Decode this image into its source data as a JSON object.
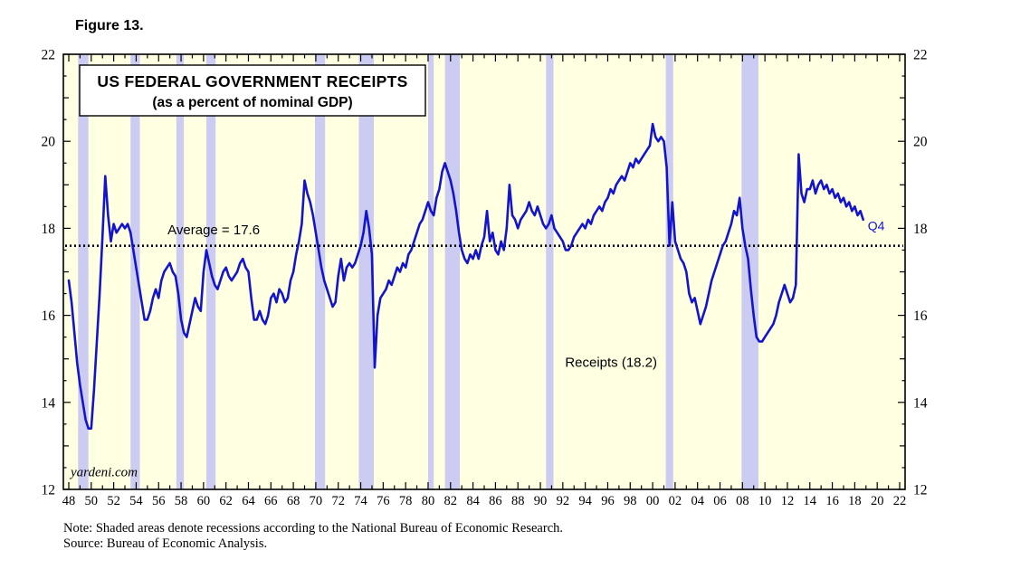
{
  "figure_label": "Figure 13.",
  "watermark": "yardeni.com",
  "title_box": {
    "line1": "US FEDERAL GOVERNMENT RECEIPTS",
    "line2": "(as a percent of nominal GDP)"
  },
  "annotations": {
    "average_label": "Average = 17.6",
    "series_label": "Receipts (18.2)",
    "last_point_label": "Q4"
  },
  "notes": {
    "note_line": "Note: Shaded areas denote recessions according to the National Bureau of Economic Research.",
    "source_line": "Source: Bureau of Economic Analysis."
  },
  "colors": {
    "plot_bg": "#ffffe1",
    "recession_band": "#ccccf2",
    "line": "#1414cc",
    "average_line": "#000000",
    "border": "#000000"
  },
  "chart_data": {
    "type": "line",
    "title": "US FEDERAL GOVERNMENT RECEIPTS",
    "subtitle": "(as a percent of nominal GDP)",
    "xlabel": "",
    "ylabel": "",
    "grid": false,
    "legend_position": "none",
    "x_range": [
      1948,
      2022
    ],
    "y_range": [
      12,
      22
    ],
    "y_ticks": [
      12,
      14,
      16,
      18,
      20,
      22
    ],
    "x_tick_years": [
      1948,
      1950,
      1952,
      1954,
      1956,
      1958,
      1960,
      1962,
      1964,
      1966,
      1968,
      1970,
      1972,
      1974,
      1976,
      1978,
      1980,
      1982,
      1984,
      1986,
      1988,
      1990,
      1992,
      1994,
      1996,
      1998,
      2000,
      2002,
      2004,
      2006,
      2008,
      2010,
      2012,
      2014,
      2016,
      2018,
      2020,
      2022
    ],
    "x_tick_labels": [
      "48",
      "50",
      "52",
      "54",
      "56",
      "58",
      "60",
      "62",
      "64",
      "66",
      "68",
      "70",
      "72",
      "74",
      "76",
      "78",
      "80",
      "82",
      "84",
      "86",
      "88",
      "90",
      "92",
      "94",
      "96",
      "98",
      "00",
      "02",
      "04",
      "06",
      "08",
      "10",
      "12",
      "14",
      "16",
      "18",
      "20",
      "22"
    ],
    "average_value": 17.6,
    "last_value": 18.2,
    "last_quarter": "Q4",
    "recessions": [
      [
        1948.83,
        1949.75
      ],
      [
        1953.5,
        1954.33
      ],
      [
        1957.58,
        1958.25
      ],
      [
        1960.25,
        1961.08
      ],
      [
        1969.92,
        1970.83
      ],
      [
        1973.83,
        1975.17
      ],
      [
        1980.0,
        1980.5
      ],
      [
        1981.5,
        1982.83
      ],
      [
        1990.5,
        1991.17
      ],
      [
        2001.17,
        2001.83
      ],
      [
        2007.92,
        2009.42
      ]
    ],
    "series": [
      {
        "name": "US federal government receipts (percent of nominal GDP), quarterly",
        "x_start": 1948,
        "x_step": 0.25,
        "values": [
          16.8,
          16.3,
          15.6,
          14.9,
          14.4,
          14.0,
          13.6,
          13.4,
          13.4,
          14.3,
          15.4,
          16.5,
          17.8,
          19.2,
          18.3,
          17.7,
          18.1,
          17.9,
          18.0,
          18.1,
          18.0,
          18.1,
          17.9,
          17.5,
          17.1,
          16.7,
          16.3,
          15.9,
          15.9,
          16.1,
          16.4,
          16.6,
          16.4,
          16.8,
          17.0,
          17.1,
          17.2,
          17.0,
          16.9,
          16.5,
          15.9,
          15.6,
          15.5,
          15.8,
          16.1,
          16.4,
          16.2,
          16.1,
          17.0,
          17.5,
          17.2,
          16.9,
          16.7,
          16.6,
          16.8,
          17.0,
          17.1,
          16.9,
          16.8,
          16.9,
          17.0,
          17.2,
          17.3,
          17.1,
          17.0,
          16.4,
          15.9,
          15.9,
          16.1,
          15.9,
          15.8,
          16.0,
          16.4,
          16.5,
          16.3,
          16.6,
          16.5,
          16.3,
          16.4,
          16.8,
          17.0,
          17.4,
          17.7,
          18.1,
          19.1,
          18.8,
          18.6,
          18.3,
          17.9,
          17.5,
          17.1,
          16.8,
          16.6,
          16.4,
          16.2,
          16.3,
          16.9,
          17.3,
          16.8,
          17.1,
          17.2,
          17.1,
          17.2,
          17.4,
          17.6,
          17.9,
          18.4,
          18.0,
          17.4,
          14.8,
          16.0,
          16.4,
          16.5,
          16.6,
          16.8,
          16.7,
          16.9,
          17.1,
          17.0,
          17.2,
          17.1,
          17.4,
          17.5,
          17.7,
          17.9,
          18.1,
          18.2,
          18.4,
          18.6,
          18.4,
          18.3,
          18.7,
          18.9,
          19.3,
          19.5,
          19.3,
          19.1,
          18.8,
          18.4,
          17.9,
          17.5,
          17.3,
          17.2,
          17.4,
          17.3,
          17.5,
          17.3,
          17.6,
          17.8,
          18.4,
          17.7,
          17.9,
          17.5,
          17.4,
          17.7,
          17.5,
          18.0,
          19.0,
          18.3,
          18.2,
          18.0,
          18.2,
          18.3,
          18.4,
          18.6,
          18.4,
          18.3,
          18.5,
          18.3,
          18.1,
          18.0,
          18.1,
          18.3,
          18.0,
          17.9,
          17.8,
          17.7,
          17.5,
          17.5,
          17.6,
          17.8,
          17.9,
          18.0,
          18.1,
          18.0,
          18.2,
          18.1,
          18.3,
          18.4,
          18.5,
          18.4,
          18.6,
          18.7,
          18.9,
          18.8,
          19.0,
          19.1,
          19.2,
          19.1,
          19.3,
          19.5,
          19.4,
          19.6,
          19.5,
          19.6,
          19.7,
          19.8,
          19.9,
          20.4,
          20.1,
          20.0,
          20.1,
          20.0,
          19.4,
          17.6,
          18.6,
          17.7,
          17.5,
          17.3,
          17.2,
          17.0,
          16.5,
          16.3,
          16.4,
          16.1,
          15.8,
          16.0,
          16.2,
          16.5,
          16.8,
          17.0,
          17.2,
          17.4,
          17.6,
          17.7,
          17.9,
          18.1,
          18.4,
          18.3,
          18.7,
          18.0,
          17.6,
          17.3,
          16.6,
          16.0,
          15.5,
          15.4,
          15.4,
          15.5,
          15.6,
          15.7,
          15.8,
          16.0,
          16.3,
          16.5,
          16.7,
          16.5,
          16.3,
          16.4,
          16.7,
          19.7,
          18.8,
          18.6,
          18.9,
          18.9,
          19.1,
          18.8,
          19.0,
          19.1,
          18.9,
          19.0,
          18.8,
          18.9,
          18.7,
          18.8,
          18.6,
          18.7,
          18.5,
          18.6,
          18.4,
          18.5,
          18.3,
          18.4,
          18.2
        ]
      }
    ]
  }
}
